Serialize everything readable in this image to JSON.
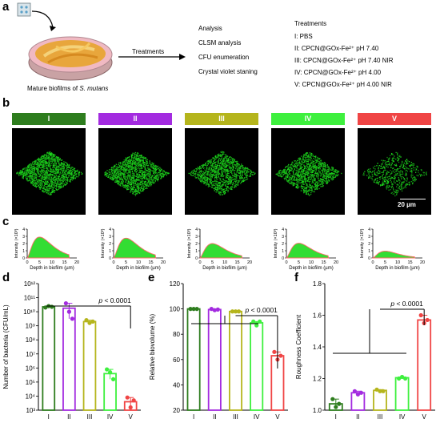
{
  "panel_a": {
    "label": "a",
    "caption_prefix": "Mature biofilms of ",
    "caption_species": "S. mutans",
    "arrow_label": "Treatments",
    "analysis_list": [
      "Analysis",
      "CLSM  analysis",
      "CFU enumeration",
      "Crystal violet staning"
    ],
    "treatments_title": "Treatments",
    "treatments": [
      "I:   PBS",
      "II:  CPCN@GOx-Fe²⁺  pH 7.40",
      "III: CPCN@GOx-Fe²⁺  pH 7.40 NIR",
      "IV:  CPCN@GOx-Fe²⁺  pH 4.00",
      "V:   CPCN@GOx-Fe²⁺  pH 4.00 NIR"
    ]
  },
  "panel_b": {
    "label": "b",
    "groups": [
      {
        "name": "I",
        "color": "#2e7d1e"
      },
      {
        "name": "II",
        "color": "#a32be0"
      },
      {
        "name": "III",
        "color": "#b5b51c"
      },
      {
        "name": "IV",
        "color": "#3ef03e"
      },
      {
        "name": "V",
        "color": "#f04545"
      }
    ],
    "scale_bar": "20 µm"
  },
  "panel_c": {
    "label": "c",
    "ylabel": "Intensity (×10³)",
    "xlabel": "Depth in biofilm (µm)",
    "xticks": [
      "0",
      "5",
      "10",
      "15",
      "20"
    ],
    "yticks": [
      "0",
      "1",
      "2",
      "3",
      "4"
    ],
    "peaks": [
      2.9,
      2.75,
      2.0,
      2.05,
      0.95
    ]
  },
  "chart_data": [
    {
      "type": "bar",
      "panel": "d",
      "ylabel": "Number of bacteria (CFU/mL)",
      "categories": [
        "I",
        "II",
        "III",
        "IV",
        "V"
      ],
      "colors": [
        "#2e7d1e",
        "#a32be0",
        "#b5b51c",
        "#3ef03e",
        "#f04545"
      ],
      "values": [
        10.35,
        10.25,
        9.3,
        5.6,
        3.6
      ],
      "points": [
        [
          10.3,
          10.4,
          10.35
        ],
        [
          10.6,
          10.0,
          9.5
        ],
        [
          9.4,
          9.2,
          9.3
        ],
        [
          5.9,
          5.7,
          5.2
        ],
        [
          3.9,
          3.2,
          3.7
        ]
      ],
      "yticks": [
        "10³",
        "10⁴",
        "10⁵",
        "10⁶",
        "10⁷",
        "10⁸",
        "10⁹",
        "10¹⁰",
        "10¹¹",
        "10¹²"
      ],
      "ylim": [
        3,
        12
      ],
      "annotation": "p < 0.0001"
    },
    {
      "type": "bar",
      "panel": "e",
      "ylabel": "Relative biovolume (%)",
      "categories": [
        "I",
        "II",
        "III",
        "IV",
        "V"
      ],
      "colors": [
        "#2e7d1e",
        "#a32be0",
        "#b5b51c",
        "#3ef03e",
        "#f04545"
      ],
      "values": [
        100,
        99.5,
        98,
        89,
        63
      ],
      "points": [
        [
          100,
          100,
          100
        ],
        [
          100,
          99,
          99.5
        ],
        [
          98,
          98,
          98
        ],
        [
          90,
          87,
          90
        ],
        [
          66,
          60,
          63
        ]
      ],
      "yticks": [
        "20",
        "40",
        "60",
        "80",
        "100",
        "120"
      ],
      "ylim": [
        20,
        120
      ],
      "annotation": "p < 0.0001"
    },
    {
      "type": "bar",
      "panel": "f",
      "ylabel": "Roughness Coefficient",
      "categories": [
        "I",
        "II",
        "III",
        "IV",
        "V"
      ],
      "colors": [
        "#2e7d1e",
        "#a32be0",
        "#b5b51c",
        "#3ef03e",
        "#f04545"
      ],
      "values": [
        1.04,
        1.11,
        1.125,
        1.205,
        1.57
      ],
      "points": [
        [
          1.07,
          1.02,
          1.04
        ],
        [
          1.12,
          1.1,
          1.11
        ],
        [
          1.13,
          1.12,
          1.12
        ],
        [
          1.2,
          1.21,
          1.2
        ],
        [
          1.6,
          1.55,
          1.57
        ]
      ],
      "yticks": [
        "1.0",
        "1.2",
        "1.4",
        "1.6",
        "1.8"
      ],
      "ylim": [
        1.0,
        1.8
      ],
      "annotation": "p < 0.0001"
    }
  ]
}
